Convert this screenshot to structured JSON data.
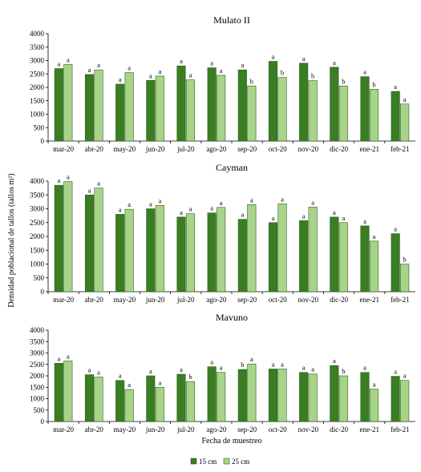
{
  "figure": {
    "ylabel": "Densidad poblacional de tallos (tallos m²)",
    "xlabel": "Fecha de muestreo",
    "legend": {
      "placement": "bottom-center"
    }
  },
  "chart_data": [
    {
      "type": "bar",
      "title": "Mulato  II",
      "categories": [
        "mar-20",
        "abr-20",
        "may-20",
        "jun-20",
        "jul-20",
        "ago-20",
        "sep-20",
        "oct-20",
        "nov-20",
        "dic-20",
        "ene-21",
        "feb-21"
      ],
      "ylim": [
        0,
        4000
      ],
      "yticks": [
        0,
        500,
        1000,
        1500,
        2000,
        2500,
        3000,
        3500,
        4000
      ],
      "series": [
        {
          "name": "15 cm",
          "color": "#3a7d23",
          "values": [
            2700,
            2480,
            2120,
            2260,
            2800,
            2730,
            2650,
            2970,
            2900,
            2750,
            2400,
            1850
          ],
          "labels": [
            "a",
            "a",
            "a",
            "a",
            "a",
            "a",
            "a",
            "a",
            "a",
            "a",
            "a",
            "a"
          ]
        },
        {
          "name": "25 cm",
          "color": "#a8d48a",
          "values": [
            2850,
            2650,
            2550,
            2420,
            2280,
            2450,
            2050,
            2370,
            2250,
            2050,
            1930,
            1380
          ],
          "labels": [
            "a",
            "a",
            "a",
            "a",
            "a",
            "a",
            "b",
            "b",
            "b",
            "b",
            "b",
            "a"
          ]
        }
      ]
    },
    {
      "type": "bar",
      "title": "Cayman",
      "categories": [
        "mar-20",
        "abr-20",
        "may-20",
        "jun-20",
        "jul-20",
        "ago-20",
        "sep-20",
        "oct-20",
        "nov-20",
        "dic-20",
        "ene-21",
        "feb-21"
      ],
      "ylim": [
        0,
        4000
      ],
      "yticks": [
        0,
        500,
        1000,
        1500,
        2000,
        2500,
        3000,
        3500,
        4000
      ],
      "series": [
        {
          "name": "15 cm",
          "color": "#3a7d23",
          "values": [
            3850,
            3500,
            2800,
            3000,
            2700,
            2850,
            2620,
            2500,
            2570,
            2700,
            2380,
            2100
          ],
          "labels": [
            "a",
            "a",
            "a",
            "a",
            "a",
            "a",
            "a",
            "a",
            "a",
            "a",
            "a",
            "a"
          ]
        },
        {
          "name": "25 cm",
          "color": "#a8d48a",
          "values": [
            3980,
            3750,
            2980,
            3120,
            2820,
            3050,
            3150,
            3180,
            3060,
            2500,
            1830,
            1000
          ],
          "labels": [
            "a",
            "a",
            "a",
            "a",
            "a",
            "a",
            "a",
            "a",
            "a",
            "a",
            "a",
            "b"
          ]
        }
      ]
    },
    {
      "type": "bar",
      "title": "Mavuno",
      "categories": [
        "mar-20",
        "abr-20",
        "may-20",
        "jun-20",
        "jul-20",
        "ago-20",
        "sep-20",
        "oct-20",
        "nov-20",
        "dic-20",
        "ene-21",
        "feb-21"
      ],
      "ylim": [
        0,
        4000
      ],
      "yticks": [
        0,
        500,
        1000,
        1500,
        2000,
        2500,
        3000,
        3500,
        4000
      ],
      "series": [
        {
          "name": "15 cm",
          "color": "#3a7d23",
          "values": [
            2550,
            2050,
            1800,
            2000,
            2070,
            2400,
            2280,
            2300,
            2150,
            2450,
            2150,
            1980
          ],
          "labels": [
            "a",
            "a",
            "a",
            "a",
            "a",
            "a",
            "b",
            "a",
            "a",
            "a",
            "a",
            "a"
          ]
        },
        {
          "name": "25 cm",
          "color": "#a8d48a",
          "values": [
            2650,
            1950,
            1400,
            1500,
            1750,
            2150,
            2520,
            2300,
            2080,
            2000,
            1420,
            1800
          ],
          "labels": [
            "a",
            "a",
            "a",
            "a",
            "b",
            "a",
            "a",
            "a",
            "a",
            "b",
            "a",
            "a"
          ]
        }
      ]
    }
  ]
}
